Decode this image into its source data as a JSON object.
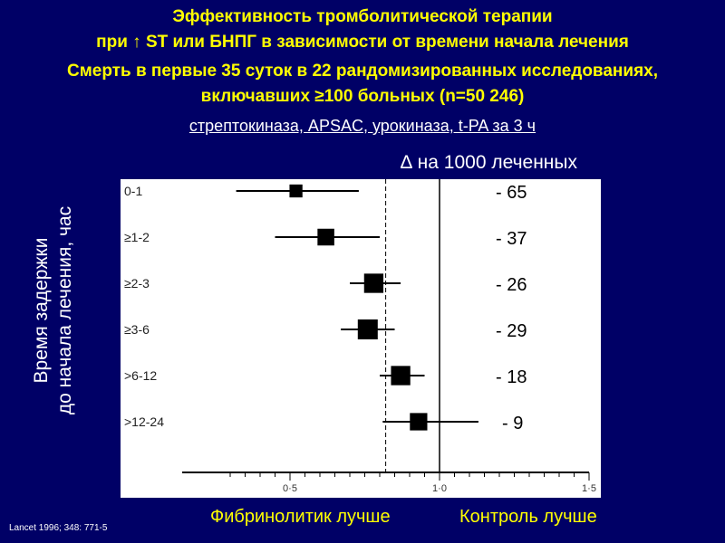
{
  "header": {
    "line1": "Эффективность тромболитической терапии",
    "line2": "при ↑ ST или БНПГ в зависимости от времени начала лечения",
    "line3": "Смерть в первые 35 суток в 22 рандомизированных исследованиях,",
    "line4": "включавших ≥100 больных (n=50 246)",
    "line5": "стрептокиназа, APSAC, урокиназа, t-PA за 3 ч"
  },
  "delta_caption": "∆ на 1000 леченных",
  "ylabel_line1": "Время задержки",
  "ylabel_line2": "до начала лечения, час",
  "favor_left": "Фибринолитик лучше",
  "favor_right": "Контроль лучше",
  "source": "Lancet 1996; 348: 771-5",
  "colors": {
    "background": "#000066",
    "title": "#ffff00",
    "plot_bg": "#ffffff",
    "marks": "#000000"
  },
  "chart_data": {
    "type": "scatter",
    "subtype": "forest-plot",
    "categories": [
      "0-1",
      "≥1-2",
      "≥2-3",
      "≥3-6",
      ">6-12",
      ">12-24"
    ],
    "odds_ratio": [
      0.52,
      0.62,
      0.78,
      0.76,
      0.87,
      0.93
    ],
    "ci_low": [
      0.32,
      0.45,
      0.7,
      0.67,
      0.8,
      0.81
    ],
    "ci_high": [
      0.73,
      0.8,
      0.87,
      0.85,
      0.95,
      1.13
    ],
    "marker_weight": [
      0.45,
      0.75,
      0.95,
      1.0,
      0.95,
      0.8
    ],
    "delta_per_1000": [
      "- 65",
      "- 37",
      "- 26",
      "- 29",
      "- 18",
      "- 9"
    ],
    "x_ticks": [
      0.5,
      1.0,
      1.5
    ],
    "x_tick_labels": [
      "0·5",
      "1·0",
      "1·5"
    ],
    "xlim": [
      0.3,
      1.5
    ],
    "reference_line": 1.0,
    "overall_line": 0.82
  }
}
